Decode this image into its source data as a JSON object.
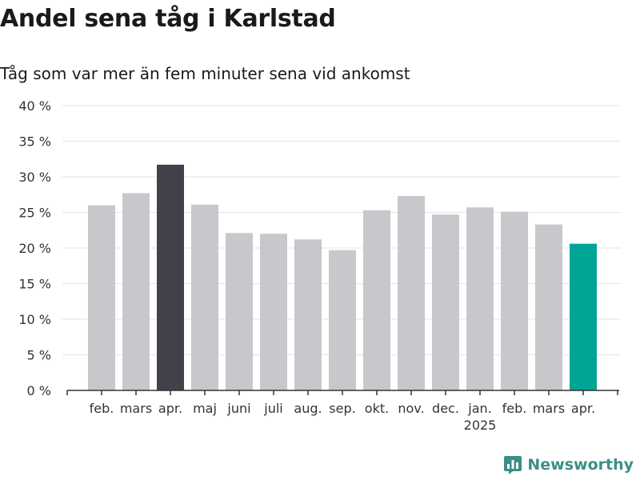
{
  "header": {
    "title": "Andel sena tåg i Karlstad",
    "subtitle": "Tåg som var mer än fem minuter sena vid ankomst"
  },
  "brand": {
    "name": "Newsworthy",
    "icon": "bar-chart-logo-icon",
    "color": "#3c8f86"
  },
  "chart_data": {
    "type": "bar",
    "title": "Andel sena tåg i Karlstad",
    "subtitle": "Tåg som var mer än fem minuter sena vid ankomst",
    "categories": [
      "feb.",
      "mars",
      "apr.",
      "maj",
      "juni",
      "juli",
      "aug.",
      "sep.",
      "okt.",
      "nov.",
      "dec.",
      "jan.",
      "feb.",
      "mars",
      "apr."
    ],
    "year_labels": {
      "11": "2025"
    },
    "values": [
      26.0,
      27.7,
      31.7,
      26.1,
      22.1,
      22.0,
      21.2,
      19.7,
      25.3,
      27.3,
      24.7,
      25.7,
      25.1,
      23.3,
      20.6
    ],
    "highlight": {
      "2": "#43404a",
      "14": "#00a595"
    },
    "default_color": "#c8c7cc",
    "ylim": [
      0,
      40
    ],
    "yticks": [
      "0 %",
      "5 %",
      "10 %",
      "15 %",
      "20 %",
      "25 %",
      "30 %",
      "35 %",
      "40 %"
    ],
    "grid": true,
    "xlabel": "",
    "ylabel": ""
  }
}
